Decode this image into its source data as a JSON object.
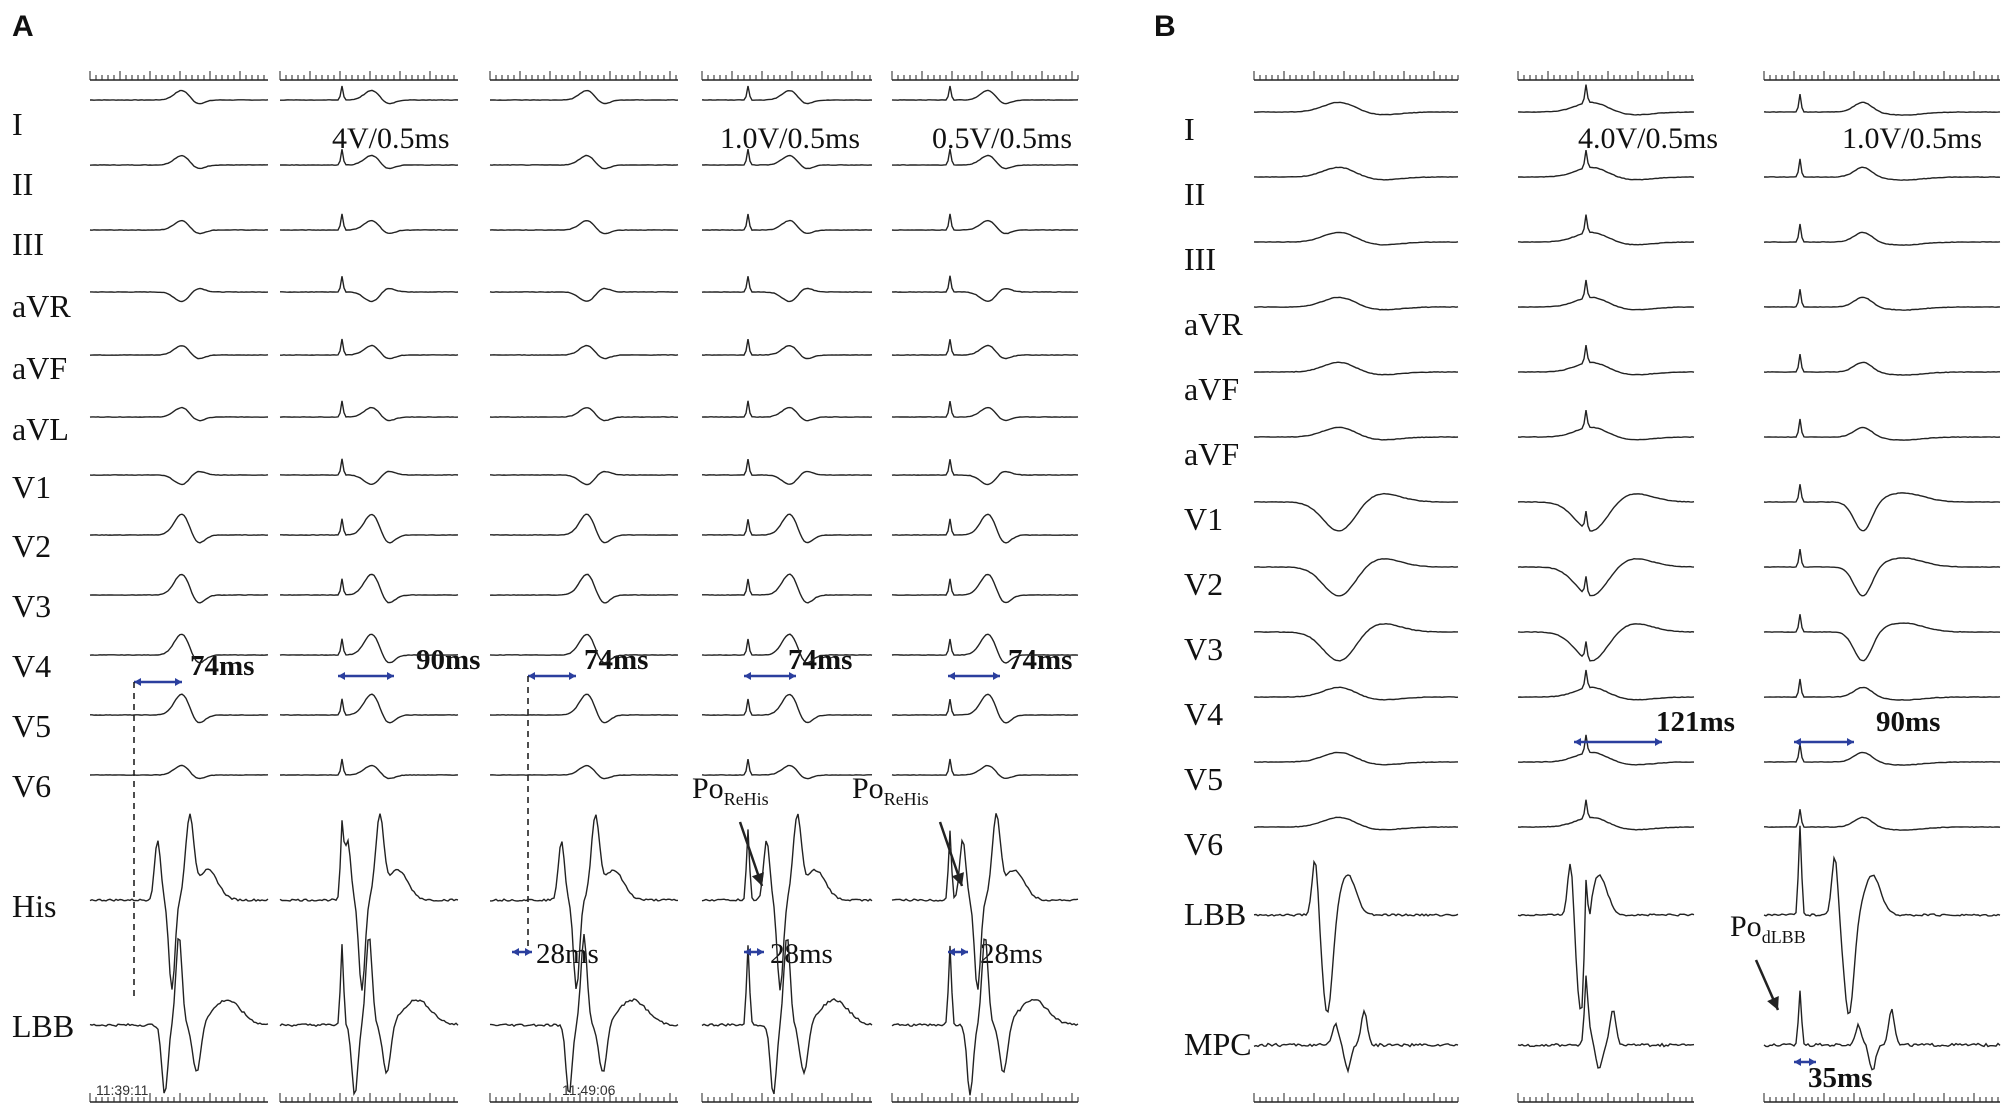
{
  "panels": [
    {
      "label": "A",
      "leads": [
        "I",
        "II",
        "III",
        "aVR",
        "aVF",
        "aVL",
        "V1",
        "V2",
        "V3",
        "V4",
        "V5",
        "V6",
        "His",
        "LBB"
      ],
      "stimulus_labels": [
        "4V/0.5ms",
        "1.0V/0.5ms",
        "0.5V/0.5ms"
      ],
      "qrs_intervals": [
        "74ms",
        "90ms",
        "74ms",
        "74ms",
        "74ms"
      ],
      "his_intervals": [
        "28ms",
        "28ms",
        "28ms"
      ],
      "po_labels": [
        {
          "base": "Po",
          "sub": "ReHis"
        },
        {
          "base": "Po",
          "sub": "ReHis"
        }
      ],
      "time_stamps": [
        "11:39:11",
        "11:49:06"
      ]
    },
    {
      "label": "B",
      "leads": [
        "I",
        "II",
        "III",
        "aVR",
        "aVF",
        "aVF",
        "V1",
        "V2",
        "V3",
        "V4",
        "V5",
        "V6",
        "LBB",
        "MPC"
      ],
      "stimulus_labels": [
        "4.0V/0.5ms",
        "1.0V/0.5ms"
      ],
      "qrs_intervals": [
        "121ms",
        "90ms"
      ],
      "mpc_interval": "35ms",
      "po_labels": [
        {
          "base": "Po",
          "sub": "dLBB"
        }
      ]
    }
  ],
  "colors": {
    "trace": "#222222",
    "caliper": "#2b3f9e",
    "text": "#111111"
  }
}
